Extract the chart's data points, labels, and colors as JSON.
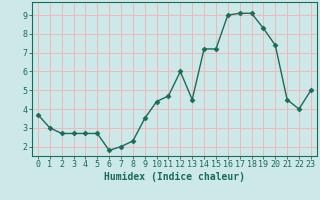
{
  "x": [
    0,
    1,
    2,
    3,
    4,
    5,
    6,
    7,
    8,
    9,
    10,
    11,
    12,
    13,
    14,
    15,
    16,
    17,
    18,
    19,
    20,
    21,
    22,
    23
  ],
  "y": [
    3.7,
    3.0,
    2.7,
    2.7,
    2.7,
    2.7,
    1.8,
    2.0,
    2.3,
    3.5,
    4.4,
    4.7,
    6.0,
    4.5,
    7.2,
    7.2,
    9.0,
    9.1,
    9.1,
    8.3,
    7.4,
    4.5,
    4.0,
    5.0
  ],
  "line_color": "#1a6b5a",
  "marker": "D",
  "marker_size": 2.5,
  "line_width": 1.0,
  "bg_color": "#cce8e8",
  "grid_color": "#f2b8b8",
  "xlabel": "Humidex (Indice chaleur)",
  "xlabel_fontsize": 7,
  "xlim": [
    -0.5,
    23.5
  ],
  "ylim": [
    1.5,
    9.7
  ],
  "yticks": [
    2,
    3,
    4,
    5,
    6,
    7,
    8,
    9
  ],
  "xticks": [
    0,
    1,
    2,
    3,
    4,
    5,
    6,
    7,
    8,
    9,
    10,
    11,
    12,
    13,
    14,
    15,
    16,
    17,
    18,
    19,
    20,
    21,
    22,
    23
  ],
  "tick_fontsize": 6
}
